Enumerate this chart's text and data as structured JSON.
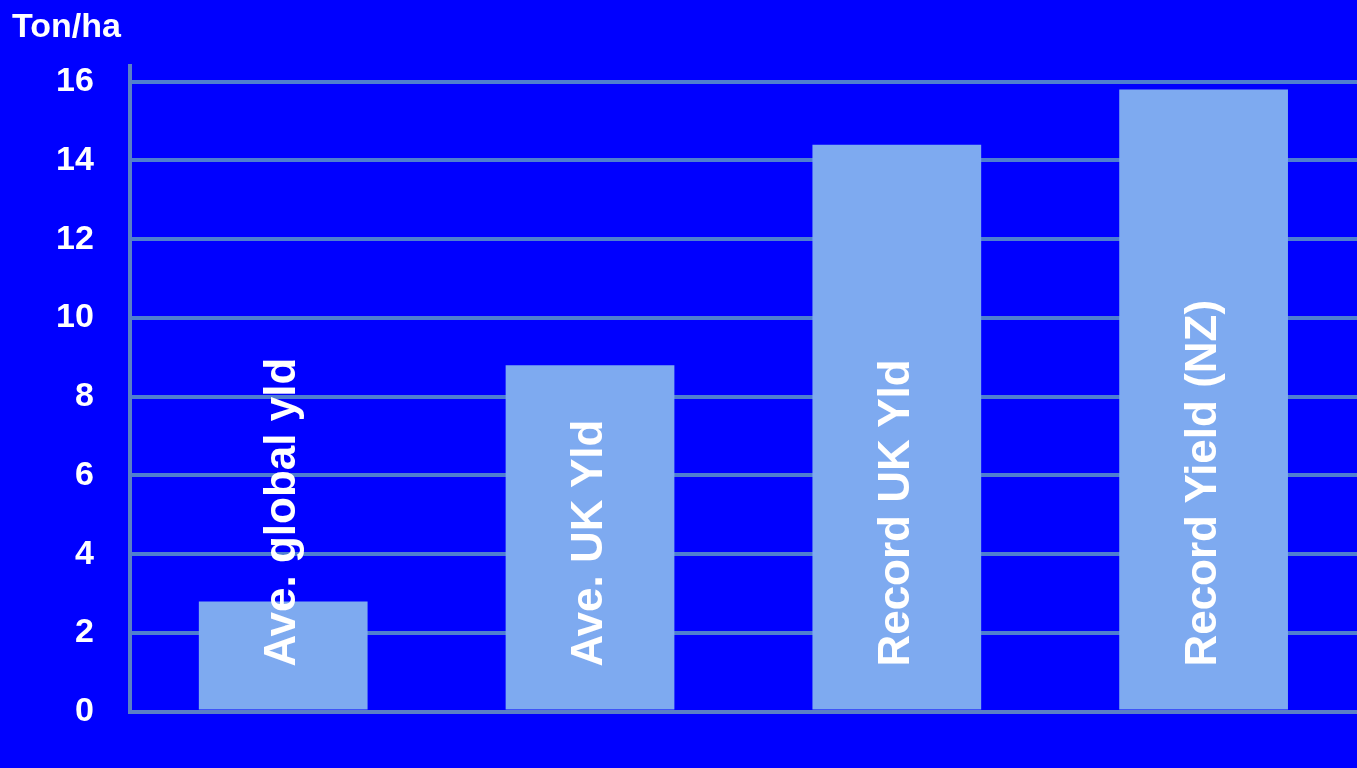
{
  "chart_data": {
    "type": "bar",
    "ylabel": "Ton/ha",
    "categories": [
      "Ave. global yld",
      "Ave. UK Yld",
      "Record UK Yld",
      "Record Yield (NZ)"
    ],
    "values": [
      2.8,
      8.8,
      14.4,
      15.8
    ],
    "color": "#7eaaf0",
    "ylim": [
      0,
      16.4
    ],
    "yticks": [
      0,
      2,
      4,
      6,
      8,
      10,
      12,
      14,
      16
    ],
    "grid": "y",
    "legend": false
  }
}
